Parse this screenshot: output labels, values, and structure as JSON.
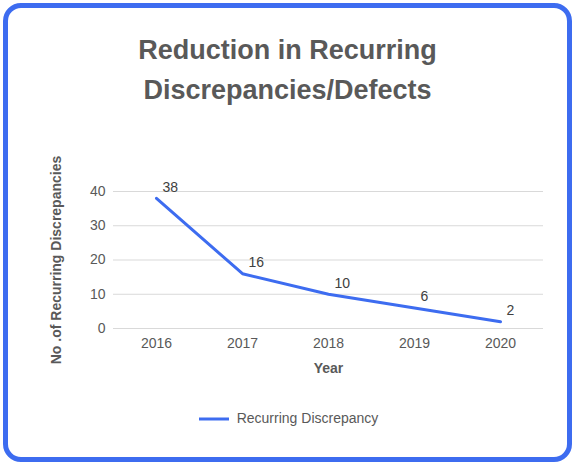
{
  "chart_data": {
    "type": "line",
    "title": "Reduction in Recurring Discrepancies/Defects",
    "x_label": "Year",
    "y_label": "No .of Recurring Discrepancies",
    "categories": [
      "2016",
      "2017",
      "2018",
      "2019",
      "2020"
    ],
    "series": [
      {
        "name": "Recurring Discrepancy",
        "color": "#3d6cf0",
        "values": [
          38,
          16,
          10,
          6,
          2
        ]
      }
    ],
    "ylim": [
      0,
      40
    ],
    "yticks": [
      0,
      10,
      20,
      30,
      40
    ],
    "grid": true,
    "data_labels": true,
    "legend": "bottom"
  }
}
